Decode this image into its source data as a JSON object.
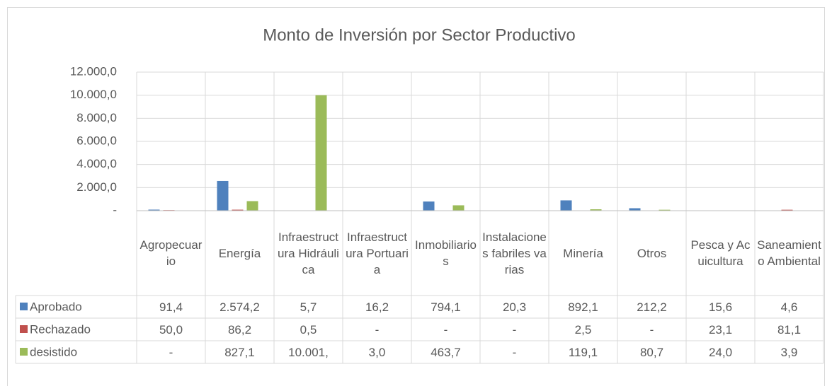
{
  "chart_data": {
    "type": "bar",
    "title": "Monto de Inversión por Sector Productivo",
    "categories": [
      "Agropecuario",
      "Energía",
      "Infraestructura Hidráulica",
      "Infraestructura Portuaria",
      "Inmobiliarios",
      "Instalaciones fabriles varias",
      "Minería",
      "Otros",
      "Pesca y Acuicultura",
      "Saneamiento Ambiental"
    ],
    "series": [
      {
        "name": "Aprobado",
        "color": "#4f81bd",
        "values": [
          91.4,
          2574.2,
          5.7,
          16.2,
          794.1,
          20.3,
          892.1,
          212.2,
          15.6,
          4.6
        ],
        "value_labels": [
          "91,4",
          "2.574,2",
          "5,7",
          "16,2",
          "794,1",
          "20,3",
          "892,1",
          "212,2",
          "15,6",
          "4,6"
        ]
      },
      {
        "name": "Rechazado",
        "color": "#c0504d",
        "values": [
          50.0,
          86.2,
          0.5,
          0,
          0,
          0,
          2.5,
          0,
          23.1,
          81.1
        ],
        "value_labels": [
          "50,0",
          "86,2",
          "0,5",
          "-",
          "-",
          "-",
          "2,5",
          "-",
          "23,1",
          "81,1"
        ]
      },
      {
        "name": "desistido",
        "color": "#9bbb59",
        "values": [
          0,
          827.1,
          10001,
          3.0,
          463.7,
          0,
          119.1,
          80.7,
          24.0,
          3.9
        ],
        "value_labels": [
          "-",
          "827,1",
          "10.001,",
          "3,0",
          "463,7",
          "-",
          "119,1",
          "80,7",
          "24,0",
          "3,9"
        ]
      }
    ],
    "ylim": [
      0,
      12000
    ],
    "yticks": [
      {
        "value": 0,
        "label": "-"
      },
      {
        "value": 2000,
        "label": "2.000,0"
      },
      {
        "value": 4000,
        "label": "4.000,0"
      },
      {
        "value": 6000,
        "label": "6.000,0"
      },
      {
        "value": 8000,
        "label": "8.000,0"
      },
      {
        "value": 10000,
        "label": "10.000,0"
      },
      {
        "value": 12000,
        "label": "12.000,0"
      }
    ],
    "grid": true
  }
}
